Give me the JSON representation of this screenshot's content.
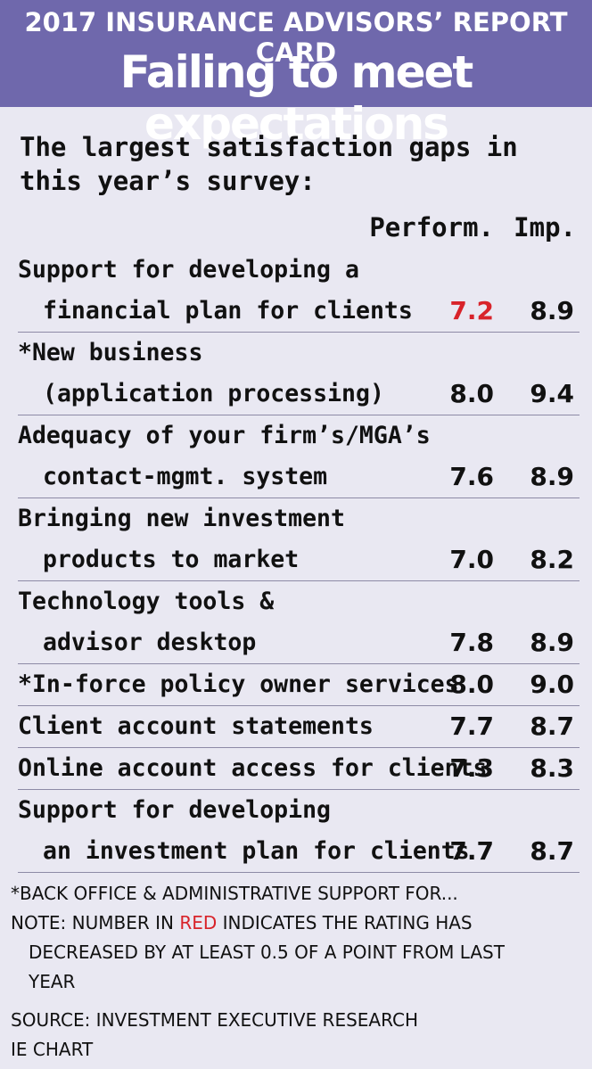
{
  "header": {
    "kicker": "2017 INSURANCE ADVISORS’ REPORT CARD",
    "headline": "Failing to meet expectations"
  },
  "chart_data": {
    "type": "table",
    "title": "The largest satisfaction gaps in this year’s survey:",
    "columns": [
      "Perform.",
      "Imp."
    ],
    "rows": [
      {
        "label_line1": "Support for developing a",
        "label_line2": "financial plan for clients",
        "perform": "7.2",
        "imp": "8.9",
        "perform_red": true
      },
      {
        "label_line1": "*New business",
        "label_line2": "(application processing)",
        "perform": "8.0",
        "imp": "9.4",
        "perform_red": false
      },
      {
        "label_line1": "Adequacy of your firm’s/MGA’s",
        "label_line2": "contact-mgmt. system",
        "perform": "7.6",
        "imp": "8.9",
        "perform_red": false
      },
      {
        "label_line1": "Bringing new investment",
        "label_line2": "products to market",
        "perform": "7.0",
        "imp": "8.2",
        "perform_red": false
      },
      {
        "label_line1": "Technology tools &",
        "label_line2": "advisor desktop",
        "perform": "7.8",
        "imp": "8.9",
        "perform_red": false
      },
      {
        "label_line1": "*In-force policy owner services",
        "label_line2": "",
        "perform": "8.0",
        "imp": "9.0",
        "perform_red": false
      },
      {
        "label_line1": "Client account statements",
        "label_line2": "",
        "perform": "7.7",
        "imp": "8.7",
        "perform_red": false
      },
      {
        "label_line1": "Online account access for clients",
        "label_line2": "",
        "perform": "7.3",
        "imp": "8.3",
        "perform_red": false
      },
      {
        "label_line1": "Support for developing",
        "label_line2": "an investment plan for clients",
        "perform": "7.7",
        "imp": "8.7",
        "perform_red": false
      }
    ]
  },
  "notes": {
    "footnote": "*BACK OFFICE & ADMINISTRATIVE SUPPORT FOR...",
    "note_prefix": "NOTE: NUMBER IN ",
    "note_red": "RED",
    "note_suffix": " INDICATES THE RATING HAS",
    "note_line2": "DECREASED BY AT LEAST 0.5 OF A POINT FROM LAST",
    "note_line3": "YEAR",
    "source": "SOURCE: INVESTMENT EXECUTIVE RESEARCH",
    "credit": "IE CHART"
  },
  "colors": {
    "header_bg": "#6f68ac",
    "page_bg": "#e9e8f2",
    "highlight_red": "#d8232a"
  }
}
